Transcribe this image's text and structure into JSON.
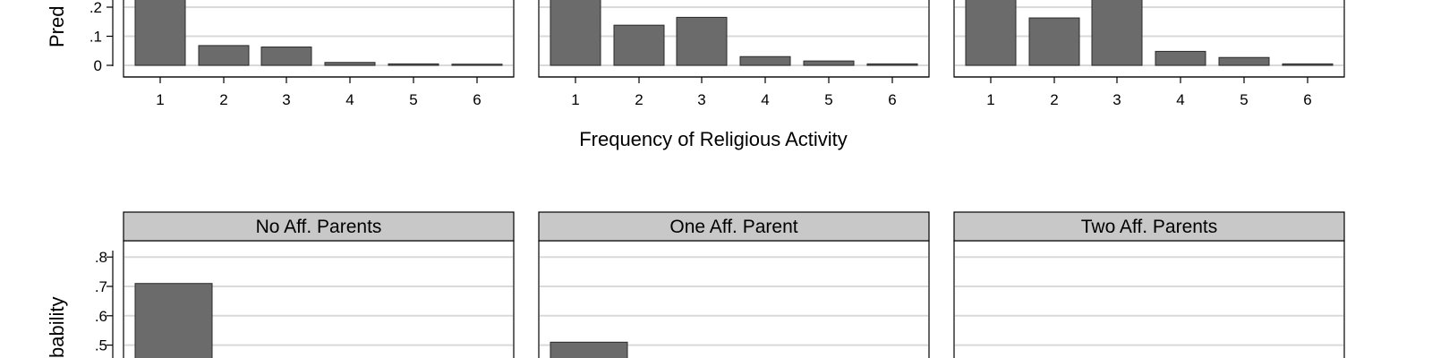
{
  "chart_data": {
    "type": "bar",
    "x_axis_title": "Frequency of Religious Activity",
    "y_axis_title_top_visible": "Pred",
    "y_axis_title_bottom_visible": "bability",
    "categories": [
      "1",
      "2",
      "3",
      "4",
      "5",
      "6"
    ],
    "top_row": {
      "y_ticks": [
        {
          "value": 0,
          "label": "0"
        },
        {
          "value": 0.1,
          "label": ".1"
        },
        {
          "value": 0.2,
          "label": ".2"
        }
      ],
      "panels": [
        {
          "name": "top-left",
          "values": [
            0.27,
            0.068,
            0.063,
            0.01,
            0.005,
            0.004
          ]
        },
        {
          "name": "top-middle",
          "values": [
            0.27,
            0.138,
            0.165,
            0.03,
            0.015,
            0.005
          ]
        },
        {
          "name": "top-right",
          "values": [
            0.27,
            0.163,
            0.27,
            0.048,
            0.027,
            0.005
          ]
        }
      ]
    },
    "bottom_row": {
      "y_ticks": [
        {
          "value": 0.5,
          "label": ".5"
        },
        {
          "value": 0.6,
          "label": ".6"
        },
        {
          "value": 0.7,
          "label": ".7"
        },
        {
          "value": 0.8,
          "label": ".8"
        }
      ],
      "panels": [
        {
          "name": "No Aff. Parents",
          "strip_label": "No Aff. Parents",
          "values": [
            0.71,
            null,
            null,
            null,
            null,
            null
          ]
        },
        {
          "name": "One Aff. Parent",
          "strip_label": "One Aff. Parent",
          "values": [
            0.51,
            null,
            null,
            null,
            null,
            null
          ]
        },
        {
          "name": "Two Aff. Parents",
          "strip_label": "Two Aff. Parents",
          "values": [
            null,
            null,
            null,
            null,
            null,
            null
          ]
        }
      ]
    }
  }
}
